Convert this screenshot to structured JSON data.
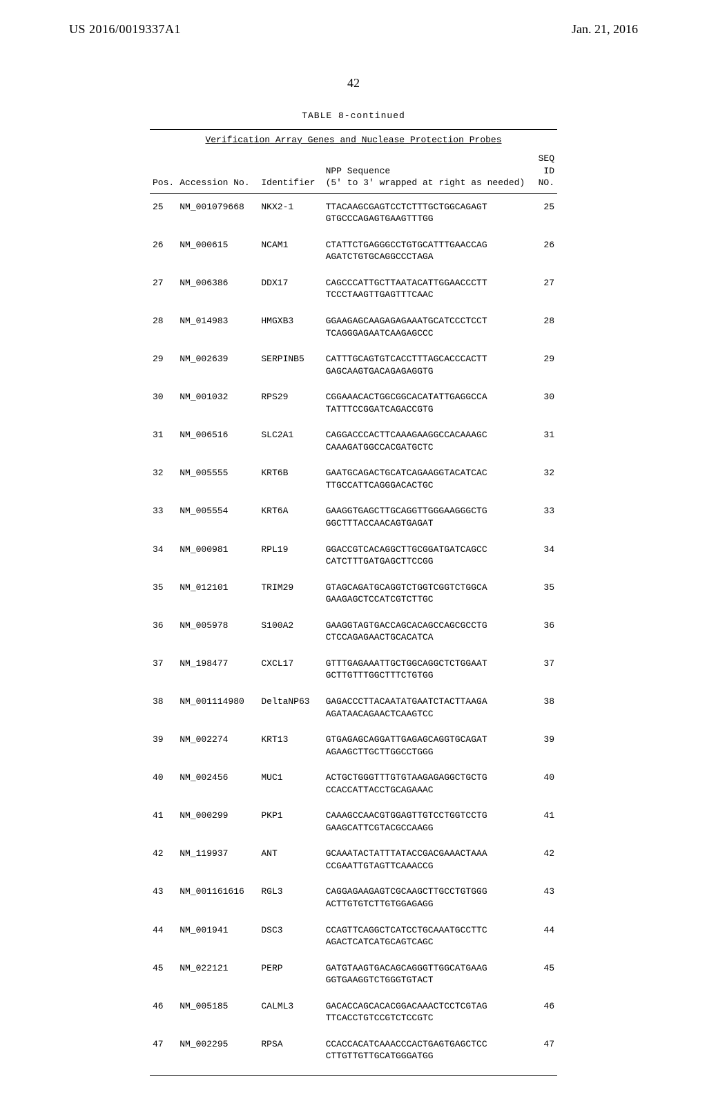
{
  "header": {
    "left": "US 2016/0019337A1",
    "right": "Jan. 21, 2016",
    "page_number": "42"
  },
  "table": {
    "caption": "TABLE 8-continued",
    "subtitle": "Verification Array Genes and Nuclease Protection Probes",
    "columns": {
      "pos": "Pos.",
      "accession": "Accession No.",
      "identifier": "Identifier",
      "sequence_l1": "NPP Sequence",
      "sequence_l2": "(5' to 3' wrapped at right as needed)",
      "seqid_l1": "SEQ",
      "seqid_l2": "ID",
      "seqid_l3": "NO."
    },
    "rows": [
      {
        "pos": "25",
        "acc": "NM_001079668",
        "id": "NKX2-1",
        "seq1": "TTACAAGCGAGTCCTCTTTGCTGGCAGAGT",
        "seq2": "GTGCCCAGAGTGAAGTTTGG",
        "seqno": "25"
      },
      {
        "pos": "26",
        "acc": "NM_000615",
        "id": "NCAM1",
        "seq1": "CTATTCTGAGGGCCTGTGCATTTGAACCAG",
        "seq2": "AGATCTGTGCAGGCCCTAGA",
        "seqno": "26"
      },
      {
        "pos": "27",
        "acc": "NM_006386",
        "id": "DDX17",
        "seq1": "CAGCCCATTGCTTAATACATTGGAACCCTT",
        "seq2": "TCCCTAAGTTGAGTTTCAAC",
        "seqno": "27"
      },
      {
        "pos": "28",
        "acc": "NM_014983",
        "id": "HMGXB3",
        "seq1": "GGAAGAGCAAGAGAGAAATGCATCCCTCCT",
        "seq2": "TCAGGGAGAATCAAGAGCCC",
        "seqno": "28"
      },
      {
        "pos": "29",
        "acc": "NM_002639",
        "id": "SERPINB5",
        "seq1": "CATTTGCAGTGTCACCTTTAGCACCCACTT",
        "seq2": "GAGCAAGTGACAGAGAGGTG",
        "seqno": "29"
      },
      {
        "pos": "30",
        "acc": "NM_001032",
        "id": "RPS29",
        "seq1": "CGGAAACACTGGCGGCACATATTGAGGCCA",
        "seq2": "TATTTCCGGATCAGACCGTG",
        "seqno": "30"
      },
      {
        "pos": "31",
        "acc": "NM_006516",
        "id": "SLC2A1",
        "seq1": "CAGGACCCACTTCAAAGAAGGCCACAAAGC",
        "seq2": "CAAAGATGGCCACGATGCTC",
        "seqno": "31"
      },
      {
        "pos": "32",
        "acc": "NM_005555",
        "id": "KRT6B",
        "seq1": "GAATGCAGACTGCATCAGAAGGTACATCAC",
        "seq2": "TTGCCATTCAGGGACACTGC",
        "seqno": "32"
      },
      {
        "pos": "33",
        "acc": "NM_005554",
        "id": "KRT6A",
        "seq1": "GAAGGTGAGCTTGCAGGTTGGGAAGGGCTG",
        "seq2": "GGCTTTACCAACAGTGAGAT",
        "seqno": "33"
      },
      {
        "pos": "34",
        "acc": "NM_000981",
        "id": "RPL19",
        "seq1": "GGACCGTCACAGGCTTGCGGATGATCAGCC",
        "seq2": "CATCTTTGATGAGCTTCCGG",
        "seqno": "34"
      },
      {
        "pos": "35",
        "acc": "NM_012101",
        "id": "TRIM29",
        "seq1": "GTAGCAGATGCAGGTCTGGTCGGTCTGGCA",
        "seq2": "GAAGAGCTCCATCGTCTTGC",
        "seqno": "35"
      },
      {
        "pos": "36",
        "acc": "NM_005978",
        "id": "S100A2",
        "seq1": "GAAGGTAGTGACCAGCACAGCCAGCGCCTG",
        "seq2": "CTCCAGAGAACTGCACATCA",
        "seqno": "36"
      },
      {
        "pos": "37",
        "acc": "NM_198477",
        "id": "CXCL17",
        "seq1": "GTTTGAGAAATTGCTGGCAGGCTCTGGAAT",
        "seq2": "GCTTGTTTGGCTTTCTGTGG",
        "seqno": "37"
      },
      {
        "pos": "38",
        "acc": "NM_001114980",
        "id": "DeltaNP63",
        "seq1": "GAGACCCTTACAATATGAATCTACTTAAGA",
        "seq2": "AGATAACAGAACTCAAGTCC",
        "seqno": "38"
      },
      {
        "pos": "39",
        "acc": "NM_002274",
        "id": "KRT13",
        "seq1": "GTGAGAGCAGGATTGAGAGCAGGTGCAGAT",
        "seq2": "AGAAGCTTGCTTGGCCTGGG",
        "seqno": "39"
      },
      {
        "pos": "40",
        "acc": "NM_002456",
        "id": "MUC1",
        "seq1": "ACTGCTGGGTTTGTGTAAGAGAGGCTGCTG",
        "seq2": "CCACCATTACCTGCAGAAAC",
        "seqno": "40"
      },
      {
        "pos": "41",
        "acc": "NM_000299",
        "id": "PKP1",
        "seq1": "CAAAGCCAACGTGGAGTTGTCCTGGTCCTG",
        "seq2": "GAAGCATTCGTACGCCAAGG",
        "seqno": "41"
      },
      {
        "pos": "42",
        "acc": "NM_119937",
        "id": "ANT",
        "seq1": "GCAAATACTATTTATACCGACGAAACTAAA",
        "seq2": "CCGAATTGTAGTTCAAACCG",
        "seqno": "42"
      },
      {
        "pos": "43",
        "acc": "NM_001161616",
        "id": "RGL3",
        "seq1": "CAGGAGAAGAGTCGCAAGCTTGCCTGTGGG",
        "seq2": "ACTTGTGTCTTGTGGAGAGG",
        "seqno": "43"
      },
      {
        "pos": "44",
        "acc": "NM_001941",
        "id": "DSC3",
        "seq1": "CCAGTTCAGGCTCATCCTGCAAATGCCTTC",
        "seq2": "AGACTCATCATGCAGTCAGC",
        "seqno": "44"
      },
      {
        "pos": "45",
        "acc": "NM_022121",
        "id": "PERP",
        "seq1": "GATGTAAGTGACAGCAGGGTTGGCATGAAG",
        "seq2": "GGTGAAGGTCTGGGTGTACT",
        "seqno": "45"
      },
      {
        "pos": "46",
        "acc": "NM_005185",
        "id": "CALML3",
        "seq1": "GACACCAGCACACGGACAAACTCCTCGTAG",
        "seq2": "TTCACCTGTCCGTCTCCGTC",
        "seqno": "46"
      },
      {
        "pos": "47",
        "acc": "NM_002295",
        "id": "RPSA",
        "seq1": "CCACCACATCAAACCCACTGAGTGAGCTCC",
        "seq2": "CTTGTTGTTGCATGGGATGG",
        "seqno": "47"
      }
    ]
  }
}
